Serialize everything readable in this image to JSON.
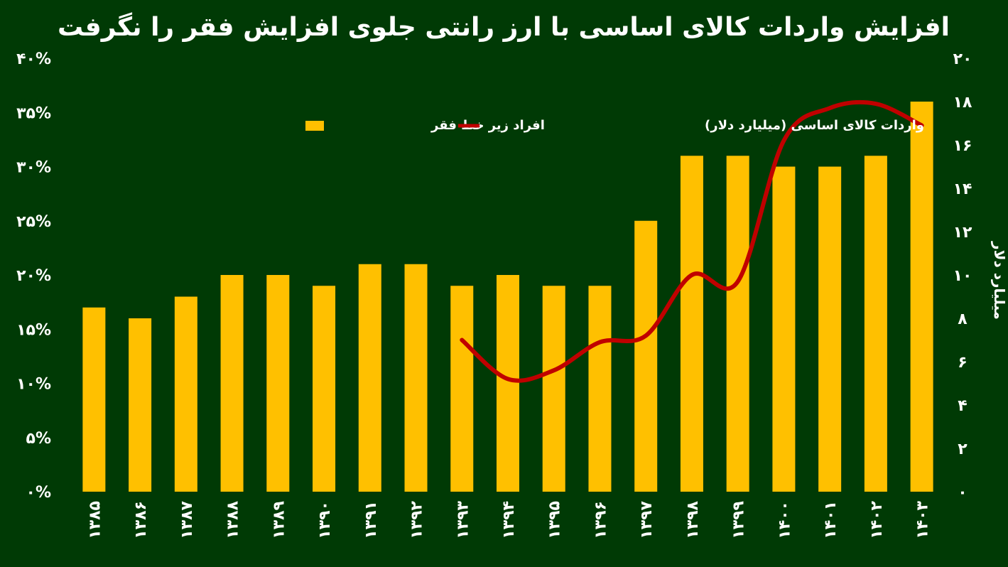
{
  "chart_data": {
    "type": "bar",
    "title": "افزایش واردات کالای اساسی با ارز رانتی جلوی افزایش فقر را نگرفت",
    "categories": [
      "۱۳۸۵",
      "۱۳۸۶",
      "۱۳۸۷",
      "۱۳۸۸",
      "۱۳۸۹",
      "۱۳۹۰",
      "۱۳۹۱",
      "۱۳۹۲",
      "۱۳۹۳",
      "۱۳۹۴",
      "۱۳۹۵",
      "۱۳۹۶",
      "۱۳۹۷",
      "۱۳۹۸",
      "۱۳۹۹",
      "۱۴۰۰",
      "۱۴۰۱",
      "۱۴۰۲",
      "۱۴۰۳"
    ],
    "series": [
      {
        "name": "افراد زیر خط فقر",
        "type": "bar",
        "axis": "left",
        "color": "#ffc000",
        "values": [
          17,
          16,
          18,
          20,
          20,
          19,
          21,
          21,
          19,
          20,
          19,
          19,
          25,
          31,
          31,
          30,
          30,
          31,
          36
        ]
      },
      {
        "name": "واردات کالای اساسی (میلیارد دلار)",
        "type": "line",
        "axis": "right",
        "color": "#c00000",
        "values": [
          null,
          null,
          null,
          null,
          null,
          null,
          null,
          null,
          7,
          5.2,
          5.6,
          6.9,
          7.2,
          10,
          9.7,
          16.2,
          17.7,
          17.9,
          16.9
        ]
      }
    ],
    "y_left": {
      "ylim": [
        0,
        40
      ],
      "ticks": [
        "۰%",
        "۵%",
        "۱۰%",
        "۱۵%",
        "۲۰%",
        "۲۵%",
        "۳۰%",
        "۳۵%",
        "۴۰%"
      ]
    },
    "y_right": {
      "ylim": [
        0,
        20
      ],
      "label": "میلیارد دلار",
      "ticks": [
        "۰",
        "۲",
        "۴",
        "۶",
        "۸",
        "۱۰",
        "۱۲",
        "۱۴",
        "۱۶",
        "۱۸",
        "۲۰"
      ]
    },
    "legend_position": "top-center",
    "grid": false
  },
  "colors": {
    "background": "#003a05",
    "bar": "#ffc000",
    "line": "#c00000",
    "text": "#ffffff"
  }
}
